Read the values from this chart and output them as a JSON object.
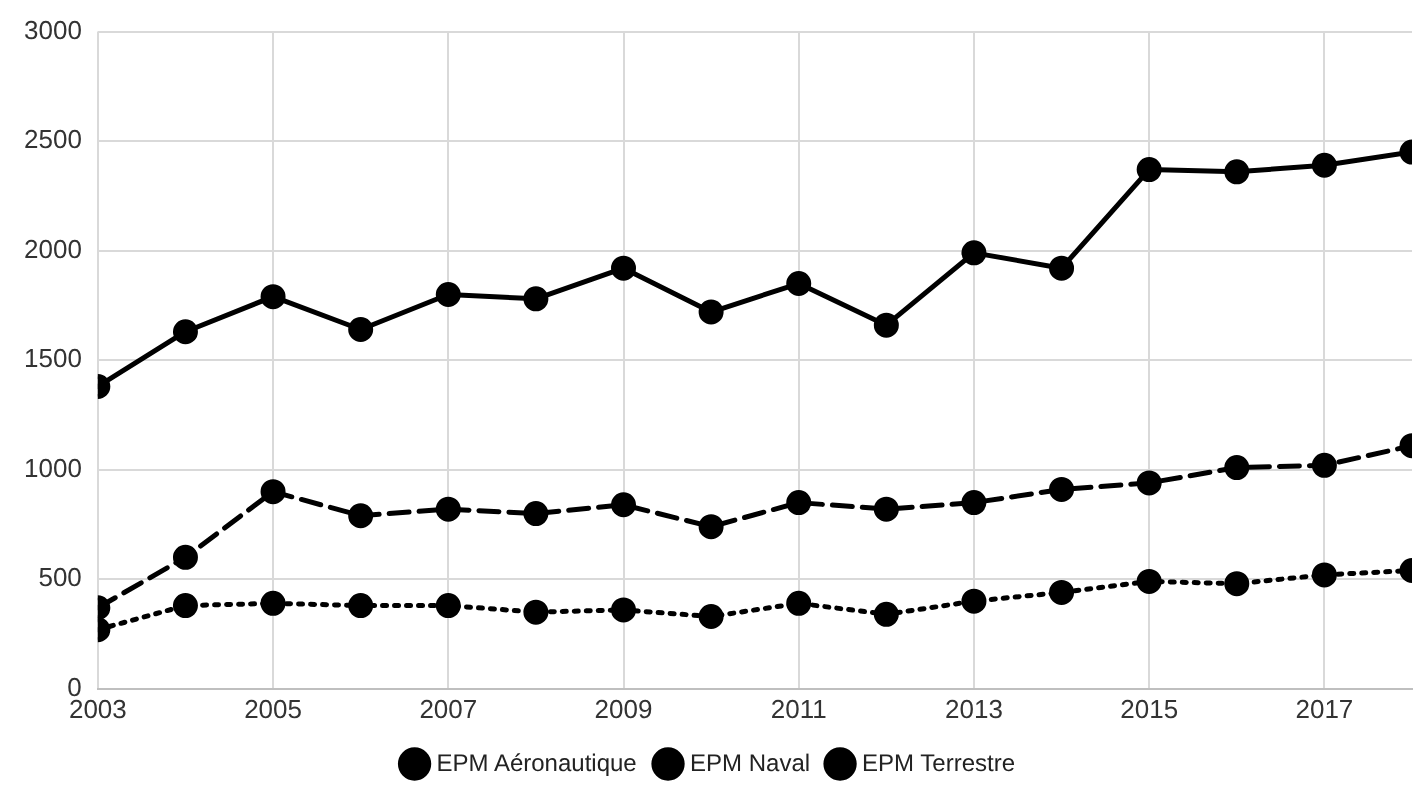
{
  "chart_data": {
    "type": "line",
    "x": [
      2003,
      2004,
      2005,
      2006,
      2007,
      2008,
      2009,
      2010,
      2011,
      2012,
      2013,
      2014,
      2015,
      2016,
      2017,
      2018
    ],
    "xlim": [
      2003,
      2018
    ],
    "xticks": [
      2003,
      2005,
      2007,
      2009,
      2011,
      2013,
      2015,
      2017
    ],
    "ylim": [
      0,
      3000
    ],
    "yticks": [
      0,
      500,
      1000,
      1500,
      2000,
      2500,
      3000
    ],
    "grid": true,
    "legend": "bottom",
    "marker": "circle",
    "series": [
      {
        "name": "EPM Aéronautique",
        "color": "#000000",
        "line_style": "solid",
        "values": [
          1380,
          1630,
          1790,
          1640,
          1800,
          1780,
          1920,
          1720,
          1850,
          1660,
          1990,
          1920,
          2370,
          2360,
          2390,
          2450
        ]
      },
      {
        "name": "EPM Naval",
        "color": "#000000",
        "line_style": "dashed",
        "values": [
          370,
          600,
          900,
          790,
          820,
          800,
          840,
          740,
          850,
          820,
          850,
          910,
          940,
          1010,
          1020,
          1110
        ]
      },
      {
        "name": "EPM Terrestre",
        "color": "#000000",
        "line_style": "dotted",
        "values": [
          270,
          380,
          390,
          380,
          380,
          350,
          360,
          330,
          390,
          340,
          400,
          440,
          490,
          480,
          520,
          540
        ]
      }
    ]
  }
}
